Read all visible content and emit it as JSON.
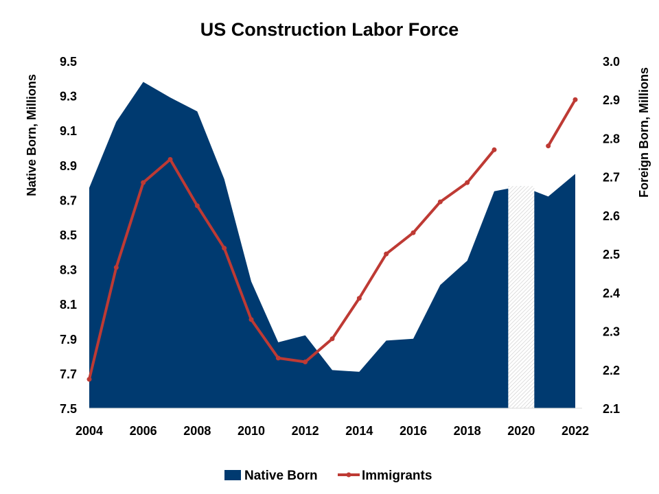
{
  "chart_data": {
    "type": "area",
    "title": "US Construction Labor Force",
    "x": [
      2004,
      2005,
      2006,
      2007,
      2008,
      2009,
      2010,
      2011,
      2012,
      2013,
      2014,
      2015,
      2016,
      2017,
      2018,
      2019,
      2020,
      2021,
      2022
    ],
    "x_tick_labels": [
      "2004",
      "2006",
      "2008",
      "2010",
      "2012",
      "2014",
      "2016",
      "2018",
      "2020",
      "2022"
    ],
    "ylabel": "Native Born, Millions",
    "y2label": "Foreign Born, Millions",
    "ylim": [
      7.5,
      9.5
    ],
    "y2lim": [
      2.1,
      3.0
    ],
    "y_tick_labels": [
      "7.5",
      "7.7",
      "7.9",
      "8.1",
      "8.3",
      "8.5",
      "8.7",
      "8.9",
      "9.1",
      "9.3",
      "9.5"
    ],
    "y2_tick_labels": [
      "2.1",
      "2.2",
      "2.3",
      "2.4",
      "2.5",
      "2.6",
      "2.7",
      "2.8",
      "2.9",
      "3.0"
    ],
    "grid": false,
    "legend_position": "bottom",
    "series": [
      {
        "name": "Native Born",
        "type": "area",
        "axis": "left",
        "color": "#003A70",
        "values": [
          8.77,
          9.15,
          9.38,
          9.29,
          9.21,
          8.82,
          8.23,
          7.88,
          7.92,
          7.72,
          7.71,
          7.89,
          7.9,
          8.21,
          8.35,
          8.75,
          8.78,
          8.72,
          8.85
        ]
      },
      {
        "name": "Immigrants",
        "type": "line",
        "axis": "right",
        "color": "#BE3A34",
        "values": [
          2.175,
          2.465,
          2.685,
          2.745,
          2.625,
          2.515,
          2.33,
          2.23,
          2.22,
          2.28,
          2.385,
          2.5,
          2.555,
          2.635,
          2.685,
          2.77,
          null,
          2.78,
          2.9
        ]
      }
    ],
    "annotations": [
      {
        "type": "hatched-bar",
        "x": 2020,
        "note_value": 8.78,
        "color": "#d8d8d8"
      }
    ]
  }
}
